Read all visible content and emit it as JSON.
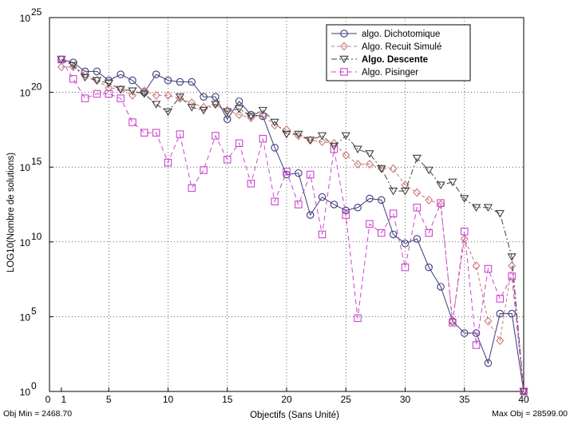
{
  "chart_data": {
    "type": "line",
    "title": "",
    "xlabel": "Objectifs (Sans Unité)",
    "ylabel": "LOG10(Nombre de solutions)",
    "xlim": [
      0,
      40
    ],
    "ylim": [
      0,
      25
    ],
    "y_scale": "log10",
    "grid": true,
    "legend_position": "top-right",
    "x_ticks": [
      0,
      1,
      5,
      10,
      15,
      20,
      25,
      30,
      35,
      40
    ],
    "x_tick_labels": [
      "0",
      "1",
      "5",
      "10",
      "15",
      "20",
      "25",
      "30",
      "35",
      "40"
    ],
    "y_ticks": [
      0,
      5,
      10,
      15,
      20,
      25
    ],
    "y_tick_labels": [
      {
        "base": "10",
        "exp": "0"
      },
      {
        "base": "10",
        "exp": "5"
      },
      {
        "base": "10",
        "exp": "10"
      },
      {
        "base": "10",
        "exp": "15"
      },
      {
        "base": "10",
        "exp": "20"
      },
      {
        "base": "10",
        "exp": "25"
      }
    ],
    "x": [
      1,
      2,
      3,
      4,
      5,
      6,
      7,
      8,
      9,
      10,
      11,
      12,
      13,
      14,
      15,
      16,
      17,
      18,
      19,
      20,
      21,
      22,
      23,
      24,
      25,
      26,
      27,
      28,
      29,
      30,
      31,
      32,
      33,
      34,
      35,
      36,
      37,
      38,
      39,
      40
    ],
    "series": [
      {
        "name": "algo. Dichotomique",
        "color": "#3a3a7a",
        "dash": "solid",
        "marker": "circle",
        "bold": false,
        "values": [
          22.2,
          22,
          21.4,
          21.4,
          20.8,
          21.2,
          20.8,
          20,
          21.2,
          20.8,
          20.7,
          20.7,
          19.7,
          19.7,
          18.2,
          19.4,
          18.5,
          18.4,
          16.3,
          14.5,
          14.6,
          11.8,
          13,
          12.5,
          12.1,
          12.3,
          12.9,
          12.8,
          10.5,
          9.9,
          10.2,
          8.3,
          7,
          4.7,
          3.9,
          3.9,
          1.9,
          5.2,
          5.2,
          0
        ]
      },
      {
        "name": "Algo. Recuit Simulé",
        "color": "#c87878",
        "dash": "4,3",
        "marker": "diamond",
        "bold": false,
        "values": [
          21.7,
          21.7,
          21.2,
          20.8,
          20.3,
          20.2,
          19.8,
          20.1,
          19.8,
          19.8,
          19.6,
          19.3,
          19,
          19.2,
          18.8,
          18.5,
          18.3,
          18.5,
          17.8,
          17.5,
          17.1,
          16.8,
          16.7,
          16.6,
          15.8,
          15.2,
          15.2,
          14.9,
          14.9,
          13.8,
          13.3,
          12.8,
          12.5,
          4.7,
          10.2,
          8.4,
          4.7,
          3.4,
          8.4,
          0
        ]
      },
      {
        "name": "Algo. Descente",
        "color": "#404040",
        "dash": "7,3,2,3",
        "marker": "triangle-down",
        "bold": true,
        "values": [
          22.2,
          21.8,
          21,
          20.8,
          20.6,
          20.2,
          20.1,
          19.9,
          19.2,
          18.7,
          19.7,
          19,
          18.8,
          19.2,
          18.7,
          18.9,
          18.4,
          18.8,
          18,
          17.2,
          17.2,
          16.8,
          17.1,
          16.4,
          17.1,
          16.2,
          15.9,
          14.9,
          13.4,
          13.4,
          15.6,
          14.8,
          13.8,
          14,
          12.9,
          12.3,
          12.3,
          11.9,
          9,
          0
        ]
      },
      {
        "name": "Algo. Pisinger",
        "color": "#cc44cc",
        "dash": "6,4",
        "marker": "square",
        "bold": false,
        "values": [
          22.2,
          20.9,
          19.6,
          19.9,
          19.9,
          19.6,
          18,
          17.3,
          17.3,
          15.3,
          17.2,
          13.6,
          14.8,
          17.1,
          15.5,
          16.6,
          13.9,
          16.9,
          12.7,
          14.7,
          12.5,
          14.5,
          10.5,
          16.2,
          11.8,
          4.9,
          11.2,
          10.6,
          11.9,
          8.3,
          12.3,
          10.6,
          12.6,
          4.6,
          10.7,
          3.1,
          8.2,
          6.2,
          7.7,
          0
        ]
      }
    ]
  },
  "annotations": {
    "obj_min": "Obj Min = 2468.70",
    "max_obj": "Max Obj = 28599.00"
  }
}
